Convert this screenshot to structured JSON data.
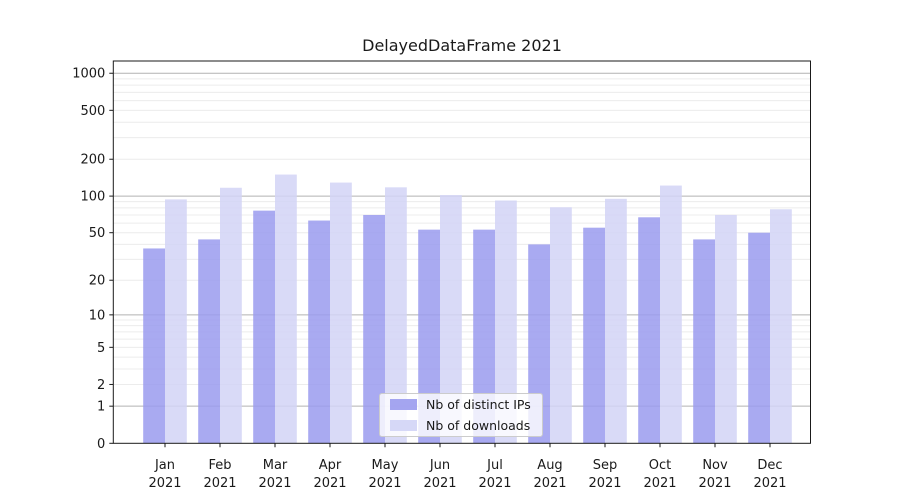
{
  "figure": {
    "background": "#ffffff"
  },
  "chart_data": {
    "type": "bar",
    "title": "DelayedDataFrame 2021",
    "xlabel": "",
    "ylabel": "",
    "yscale": "log1p",
    "ylim": [
      0,
      1300
    ],
    "yticks": [
      0,
      1,
      2,
      5,
      10,
      20,
      50,
      100,
      200,
      500,
      1000
    ],
    "grid": "on",
    "grid_major_color": "#b2b2b2",
    "grid_minor_color": "#ececec",
    "categories": [
      "Jan",
      "Feb",
      "Mar",
      "Apr",
      "May",
      "Jun",
      "Jul",
      "Aug",
      "Sep",
      "Oct",
      "Nov",
      "Dec"
    ],
    "category_year": "2021",
    "legend_position": "lower center",
    "series": [
      {
        "name": "Nb of distinct IPs",
        "color": "#9a9bee",
        "values": [
          37,
          44,
          76,
          63,
          70,
          53,
          53,
          40,
          55,
          67,
          44,
          50
        ]
      },
      {
        "name": "Nb of downloads",
        "color": "#d2d4f6",
        "values": [
          94,
          117,
          150,
          129,
          118,
          102,
          92,
          81,
          95,
          122,
          70,
          78
        ]
      }
    ]
  }
}
